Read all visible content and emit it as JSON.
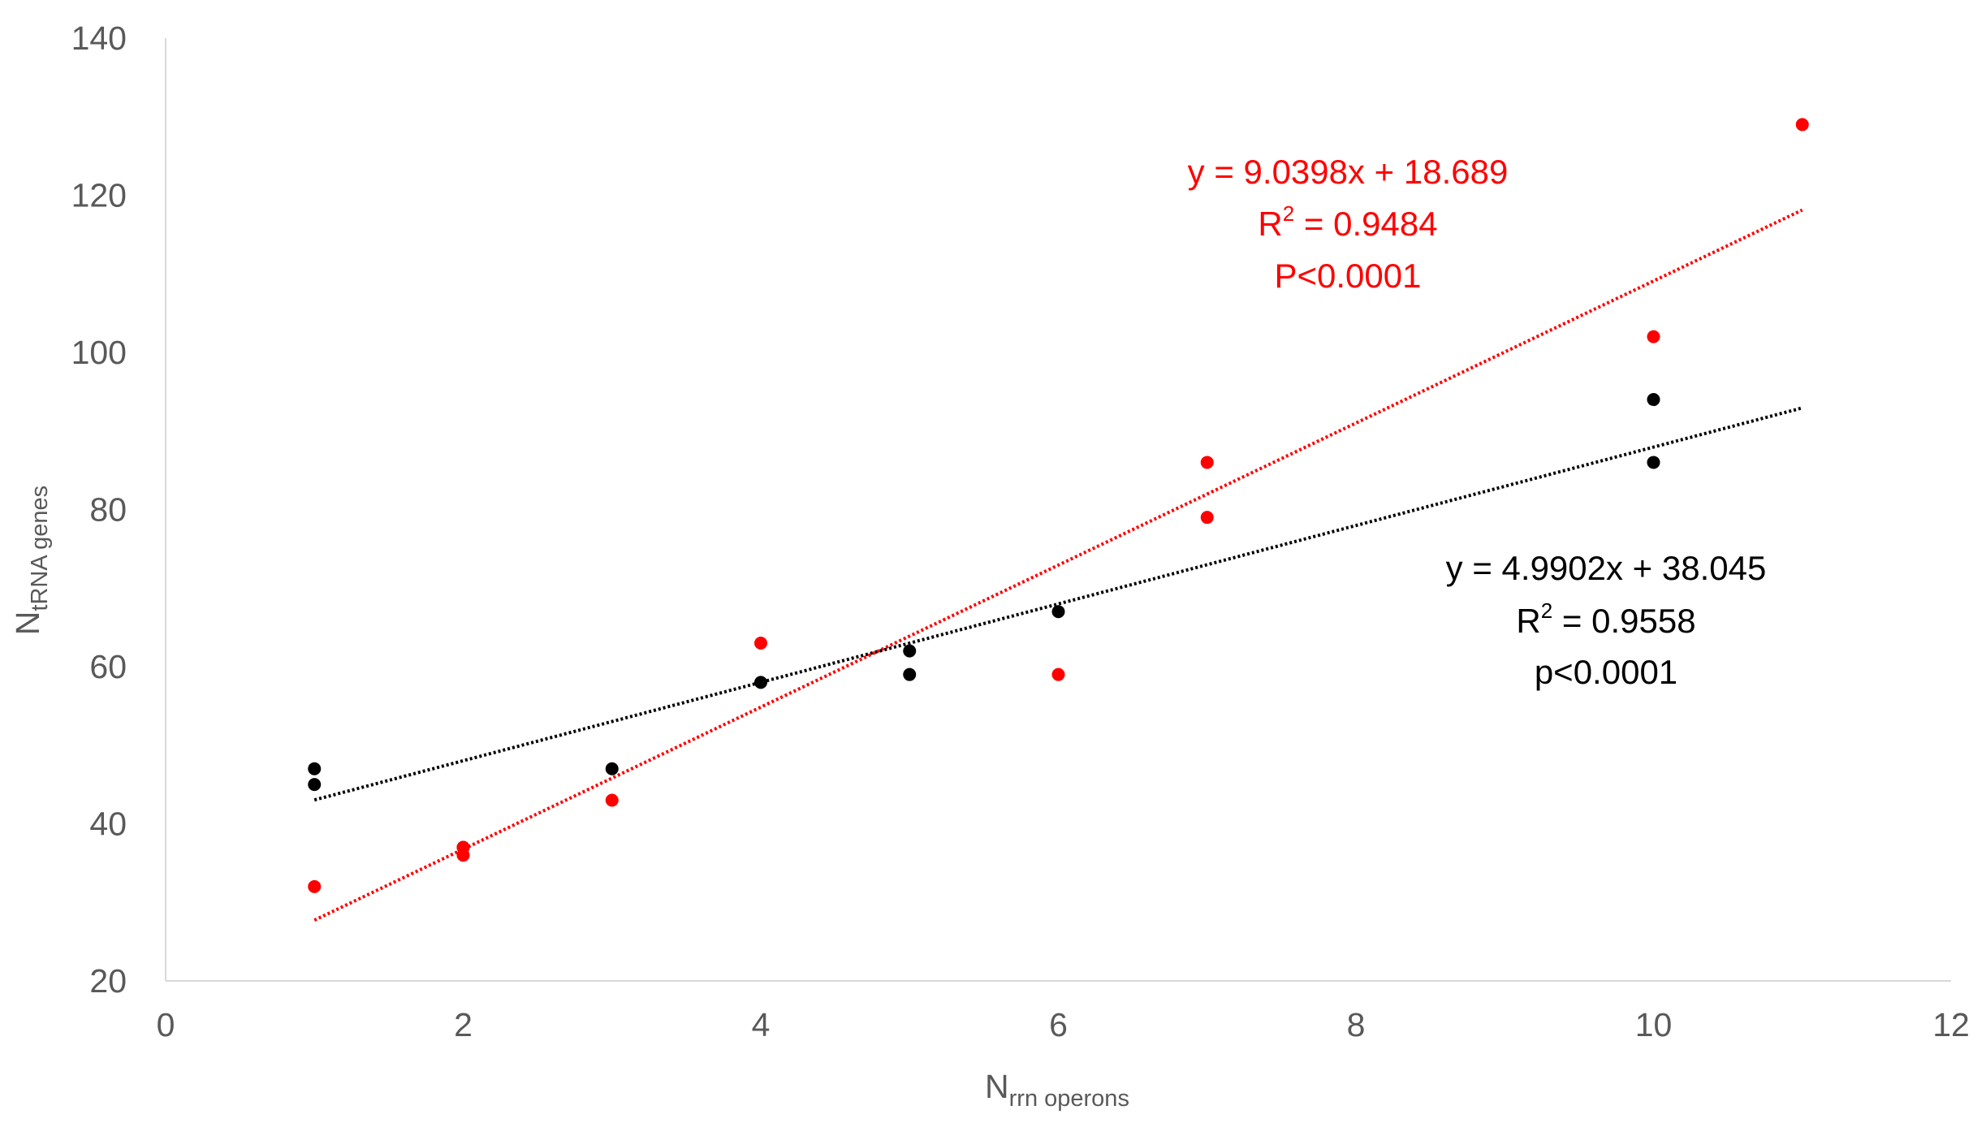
{
  "chart_data": {
    "type": "scatter",
    "title": "",
    "xlabel": {
      "main": "N",
      "subscript": "rrn operons"
    },
    "ylabel": {
      "main": "N",
      "subscript": "tRNA genes"
    },
    "xlim": [
      0,
      12
    ],
    "ylim": [
      20,
      140
    ],
    "x_ticks": [
      "0",
      "2",
      "4",
      "6",
      "8",
      "10",
      "12"
    ],
    "y_ticks": [
      "20",
      "40",
      "60",
      "80",
      "100",
      "120",
      "140"
    ],
    "grid": false,
    "legend": "none",
    "series": [
      {
        "color": "#000000",
        "points": [
          [
            1,
            47
          ],
          [
            1,
            45
          ],
          [
            2,
            37
          ],
          [
            3,
            47
          ],
          [
            4,
            58
          ],
          [
            5,
            62
          ],
          [
            5,
            59
          ],
          [
            6,
            67
          ],
          [
            10,
            94
          ],
          [
            10,
            86
          ]
        ],
        "trendline": {
          "slope": 4.9902,
          "intercept": 38.045,
          "x_range": [
            1,
            11
          ],
          "color": "#000000",
          "equation": "y = 4.9902x + 38.045",
          "r2_prefix": "R",
          "r2_sup": "2",
          "r2_value": " = 0.9558",
          "p_text": "p<0.0001"
        }
      },
      {
        "color": "#ff0000",
        "points": [
          [
            1,
            32
          ],
          [
            2,
            37
          ],
          [
            2,
            36
          ],
          [
            3,
            43
          ],
          [
            4,
            63
          ],
          [
            6,
            59
          ],
          [
            7,
            86
          ],
          [
            7,
            79
          ],
          [
            10,
            102
          ],
          [
            11,
            129
          ]
        ],
        "trendline": {
          "slope": 9.0398,
          "intercept": 18.689,
          "x_range": [
            1,
            11
          ],
          "color": "#ff0000",
          "equation": "y = 9.0398x + 18.689",
          "r2_prefix": "R",
          "r2_sup": "2",
          "r2_value": " = 0.9484",
          "p_text": "P<0.0001"
        }
      }
    ]
  }
}
